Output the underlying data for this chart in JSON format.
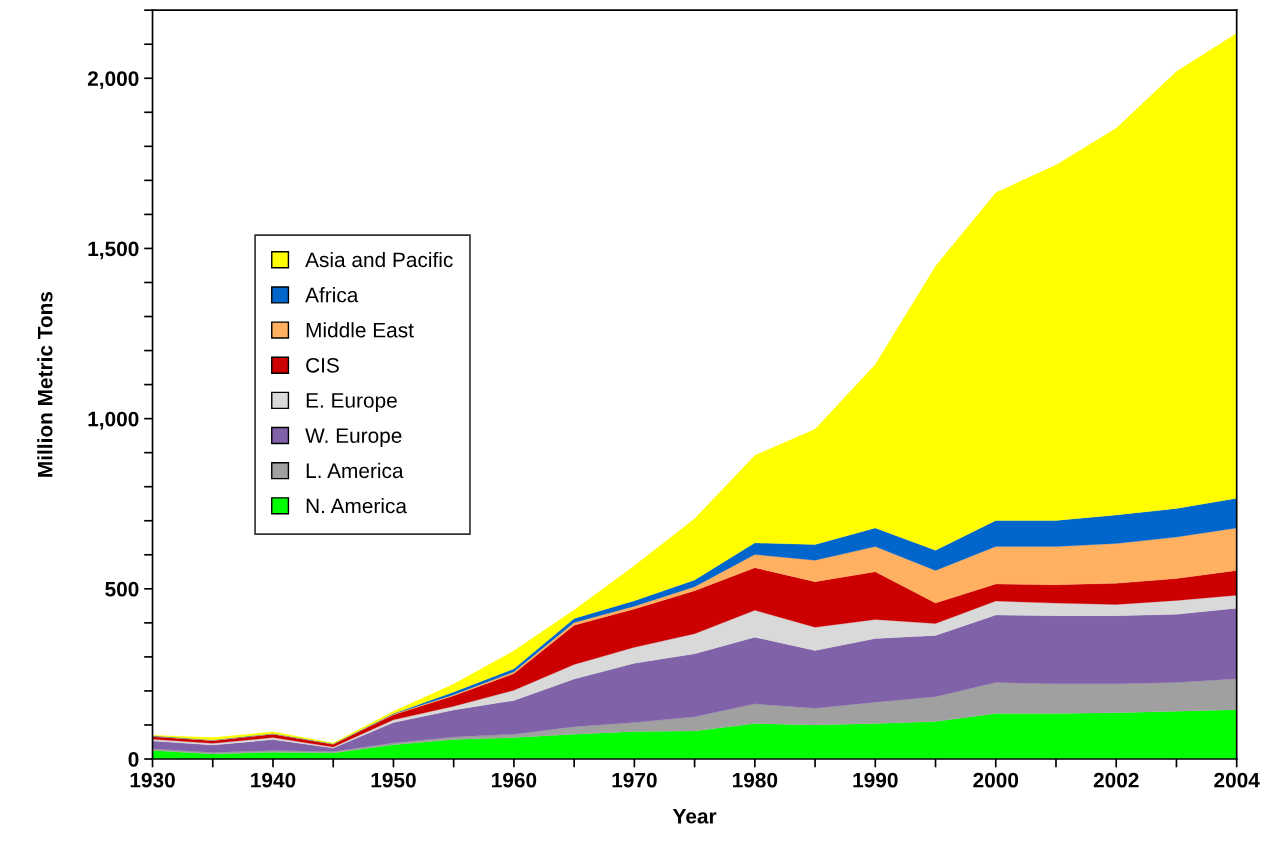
{
  "chart_data": {
    "type": "area",
    "stacked": true,
    "xlabel": "Year",
    "ylabel": "Million Metric Tons",
    "categories": [
      "1930",
      null,
      "1940",
      null,
      "1950",
      null,
      "1960",
      null,
      "1970",
      null,
      "1980",
      null,
      "1990",
      null,
      "2000",
      null,
      "2002",
      null,
      "2004"
    ],
    "series": [
      {
        "name": "N. America",
        "color": "#00ff00",
        "values": [
          25,
          15,
          20,
          18,
          42,
          57,
          63,
          73,
          81,
          82,
          104,
          100,
          104,
          110,
          134,
          134,
          136,
          140,
          145
        ]
      },
      {
        "name": "L. America",
        "color": "#a0a0a0",
        "values": [
          5,
          4,
          5,
          4,
          5,
          8,
          10,
          22,
          26,
          42,
          58,
          49,
          63,
          73,
          91,
          87,
          85,
          85,
          91
        ]
      },
      {
        "name": "W. Europe",
        "color": "#7f62a8",
        "values": [
          23,
          22,
          32,
          10,
          60,
          79,
          99,
          140,
          174,
          185,
          196,
          170,
          187,
          180,
          198,
          200,
          200,
          200,
          207
        ]
      },
      {
        "name": "E. Europe",
        "color": "#d9d9d9",
        "values": [
          5,
          5,
          6,
          3,
          8,
          11,
          30,
          43,
          47,
          59,
          79,
          68,
          56,
          35,
          41,
          37,
          33,
          41,
          38
        ]
      },
      {
        "name": "CIS",
        "color": "#cc0000",
        "values": [
          8,
          8,
          10,
          8,
          15,
          31,
          49,
          115,
          113,
          126,
          125,
          134,
          140,
          60,
          50,
          54,
          62,
          64,
          73
        ]
      },
      {
        "name": "Middle East",
        "color": "#ffb060",
        "values": [
          1,
          1,
          1,
          1,
          2,
          3,
          5,
          8,
          8,
          12,
          39,
          63,
          74,
          96,
          110,
          112,
          117,
          122,
          125
        ]
      },
      {
        "name": "Africa",
        "color": "#0066cc",
        "values": [
          1,
          1,
          1,
          1,
          2,
          8,
          9,
          12,
          16,
          20,
          34,
          46,
          55,
          59,
          77,
          77,
          84,
          84,
          87
        ]
      },
      {
        "name": "Asia and Pacific",
        "color": "#ffff00",
        "values": [
          2,
          7,
          5,
          2,
          6,
          23,
          53,
          25,
          103,
          180,
          257,
          339,
          480,
          835,
          963,
          1044,
          1136,
          1284,
          1366
        ]
      }
    ],
    "ylim": [
      0,
      2200
    ],
    "yticks": [
      0,
      {
        "value": 100,
        "label": null
      },
      {
        "value": 200,
        "label": null
      },
      {
        "value": 300,
        "label": null
      },
      {
        "value": 400,
        "label": null
      },
      {
        "value": 500,
        "label": "500"
      },
      {
        "value": 600,
        "label": null
      },
      {
        "value": 700,
        "label": null
      },
      {
        "value": 800,
        "label": null
      },
      {
        "value": 900,
        "label": null
      },
      {
        "value": 1000,
        "label": "1,000"
      },
      {
        "value": 1100,
        "label": null
      },
      {
        "value": 1200,
        "label": null
      },
      {
        "value": 1300,
        "label": null
      },
      {
        "value": 1400,
        "label": null
      },
      {
        "value": 1500,
        "label": "1,500"
      },
      {
        "value": 1600,
        "label": null
      },
      {
        "value": 1700,
        "label": null
      },
      {
        "value": 1800,
        "label": null
      },
      {
        "value": 1900,
        "label": null
      },
      {
        "value": 2000,
        "label": "2,000"
      },
      {
        "value": 2100,
        "label": null
      },
      {
        "value": 2200,
        "label": null
      }
    ],
    "legend": "center left",
    "grid": false
  }
}
